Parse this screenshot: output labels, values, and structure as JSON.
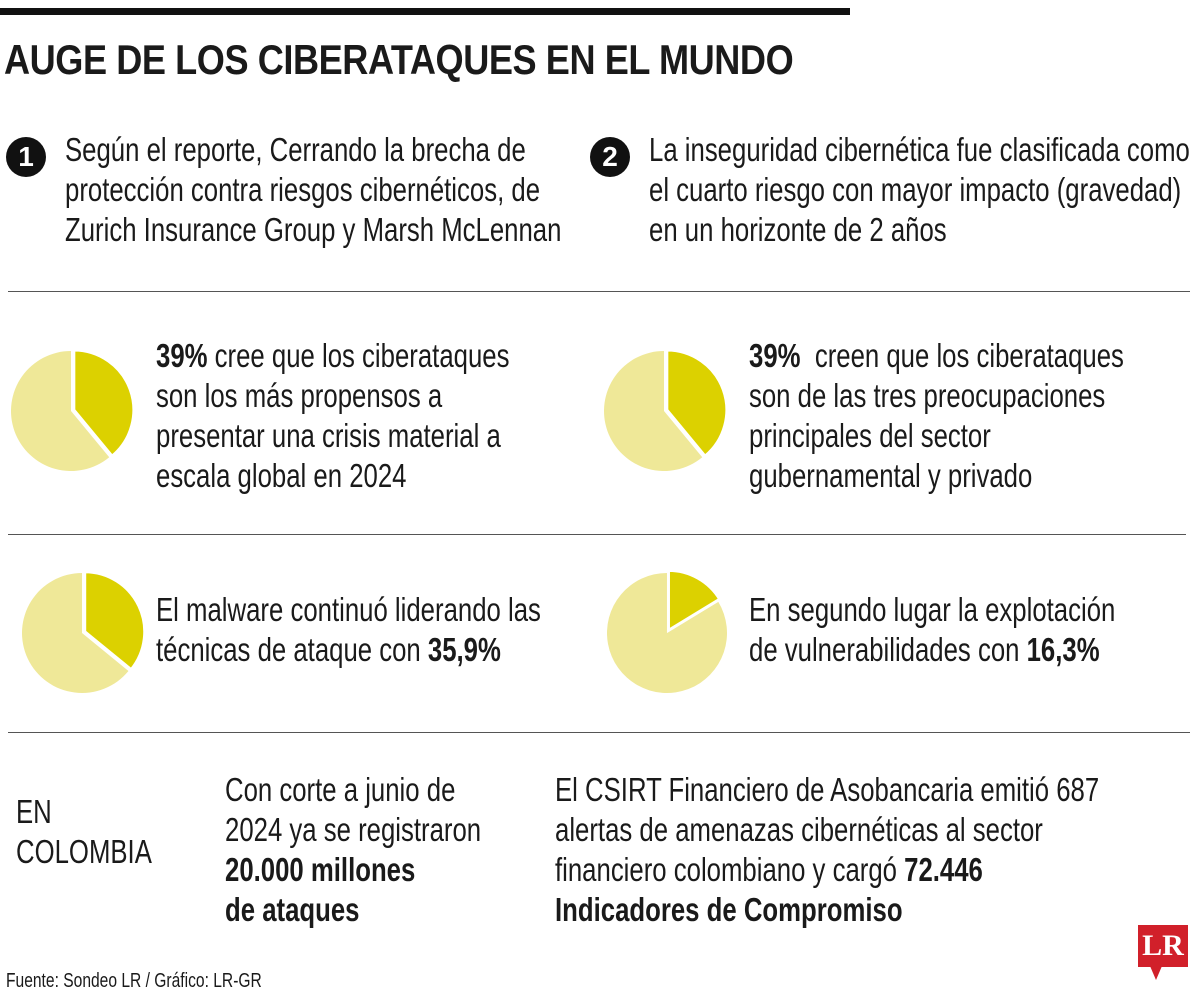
{
  "title": "AUGE DE LOS CIBERATAQUES EN EL MUNDO",
  "points": [
    {
      "number": "1",
      "lines": [
        "Según el reporte, Cerrando la brecha de",
        "protección contra riesgos cibernéticos, de",
        "Zurich Insurance Group y Marsh McLennan"
      ]
    },
    {
      "number": "2",
      "lines": [
        "La inseguridad cibernética fue clasificada como",
        "el cuarto riesgo con mayor impacto (gravedad)",
        "en un horizonte de 2 años"
      ]
    }
  ],
  "stats": [
    {
      "bold": "39%",
      "line1_rest": " cree que los ciberataques",
      "lines": [
        "son los más propensos a",
        "presentar una crisis material a",
        "escala global en 2024"
      ]
    },
    {
      "bold": "39%",
      "line1_rest": "  creen que los ciberataques",
      "lines": [
        "son de las tres preocupaciones",
        "principales del sector",
        "gubernamental y privado"
      ]
    },
    {
      "line1": "El malware continuó liderando las",
      "line2_pre": "técnicas de ataque con ",
      "bold": "35,9%"
    },
    {
      "line1": "En segundo lugar la explotación",
      "line2_pre": "de vulnerabilidades con ",
      "bold": "16,3%"
    }
  ],
  "colombia": {
    "label_lines": [
      "EN",
      "COLOMBIA"
    ],
    "left_lines": [
      "Con corte a junio de",
      "2024 ya se registraron"
    ],
    "left_bold_lines": [
      "20.000 millones",
      "de ataques"
    ],
    "right_lines": [
      "El CSIRT Financiero de Asobancaria emitió 687",
      "alertas de amenazas cibernéticas al sector"
    ],
    "right_line3_pre": "financiero colombiano y cargó ",
    "right_line3_bold": "72.446",
    "right_bold_line": "Indicadores de Compromiso"
  },
  "source": "Fuente: Sondeo LR / Gráfico: LR-GR",
  "logo": "LR",
  "colors": {
    "highlight": "#dcd100",
    "rest": "#efe898",
    "logo": "#d1202a"
  },
  "chart_data": [
    {
      "type": "pie",
      "values": [
        39,
        61
      ]
    },
    {
      "type": "pie",
      "values": [
        39,
        61
      ]
    },
    {
      "type": "pie",
      "values": [
        35.9,
        64.1
      ]
    },
    {
      "type": "pie",
      "values": [
        16.3,
        83.7
      ]
    }
  ]
}
